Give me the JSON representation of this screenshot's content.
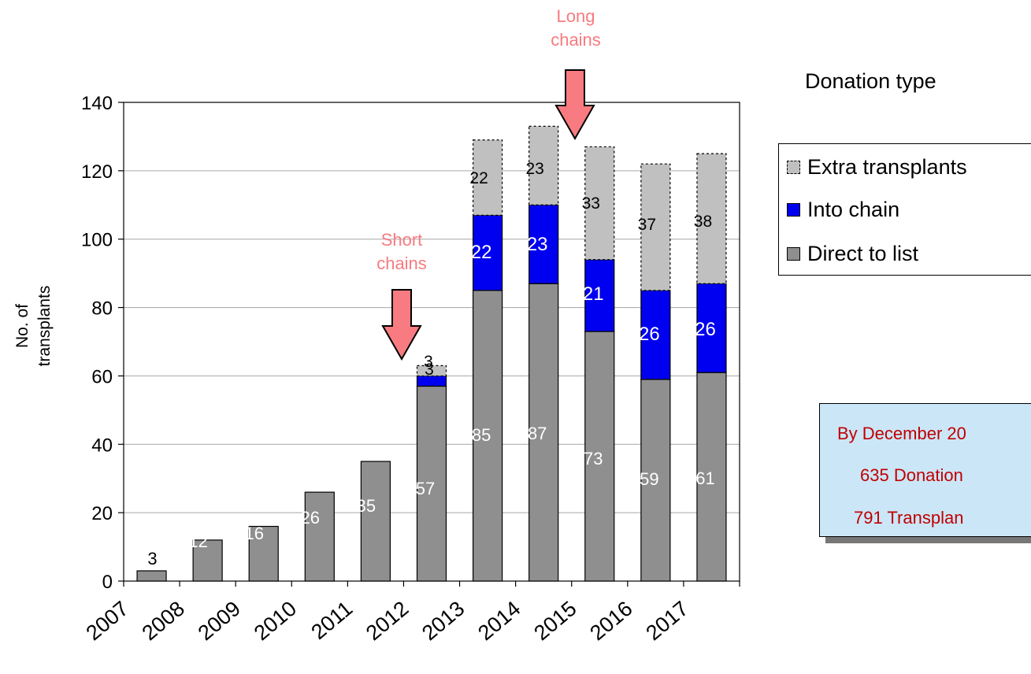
{
  "chart_data": {
    "type": "bar",
    "stacked": true,
    "categories": [
      "2007",
      "2008",
      "2009",
      "2010",
      "2011",
      "2012",
      "2013",
      "2014",
      "2015",
      "2016",
      "2017"
    ],
    "series": [
      {
        "name": "Direct to list",
        "values": [
          3,
          12,
          16,
          26,
          35,
          57,
          85,
          87,
          73,
          59,
          61
        ],
        "color": "#8f8f8f",
        "label_color": "#ffffff",
        "label_color_first": "#000000"
      },
      {
        "name": "Into chain",
        "values": [
          0,
          0,
          0,
          0,
          0,
          3,
          22,
          23,
          21,
          26,
          26
        ],
        "color": "#0000f0",
        "label_color": "#ffffff"
      },
      {
        "name": "Extra transplants",
        "values": [
          0,
          0,
          0,
          0,
          0,
          3,
          22,
          23,
          33,
          37,
          38
        ],
        "color": "#c0c0c0",
        "label_color": "#000000",
        "dashed": true
      }
    ],
    "data_labels": {
      "Direct to list": [
        "3",
        "12",
        "16",
        "26",
        "35",
        "57",
        "85",
        "87",
        "73",
        "59",
        "61"
      ],
      "Into chain": [
        "",
        "",
        "",
        "",
        "",
        "",
        "22",
        "23",
        "21",
        "26",
        "26"
      ],
      "Extra transplants": [
        "",
        "",
        "",
        "",
        "",
        "3",
        "22",
        "23",
        "33",
        "37",
        "38"
      ]
    },
    "ylabel": "No. of transplants",
    "ylabel_lines": [
      "No. of",
      "transplants"
    ],
    "ylim": [
      0,
      140
    ],
    "yticks": [
      0,
      20,
      40,
      60,
      80,
      100,
      120,
      140
    ],
    "grid": true,
    "legend_position": "right",
    "overlapped_label_2012": "3"
  },
  "legend": {
    "title": "Donation type",
    "items": [
      {
        "label": "Extra transplants",
        "color": "#c0c0c0",
        "dashed": true
      },
      {
        "label": "Into chain",
        "color": "#0000f0",
        "dashed": false
      },
      {
        "label": "Direct to list",
        "color": "#8f8f8f",
        "dashed": false
      }
    ]
  },
  "annotations": {
    "long_chains": {
      "lines": [
        "Long",
        "chains"
      ],
      "color": "#f77b80"
    },
    "short_chains": {
      "lines": [
        "Short",
        "chains"
      ],
      "color": "#f77b80"
    }
  },
  "info_box": {
    "line1": "By December 20",
    "line2": "635 Donation",
    "line3": "791 Transplan"
  }
}
